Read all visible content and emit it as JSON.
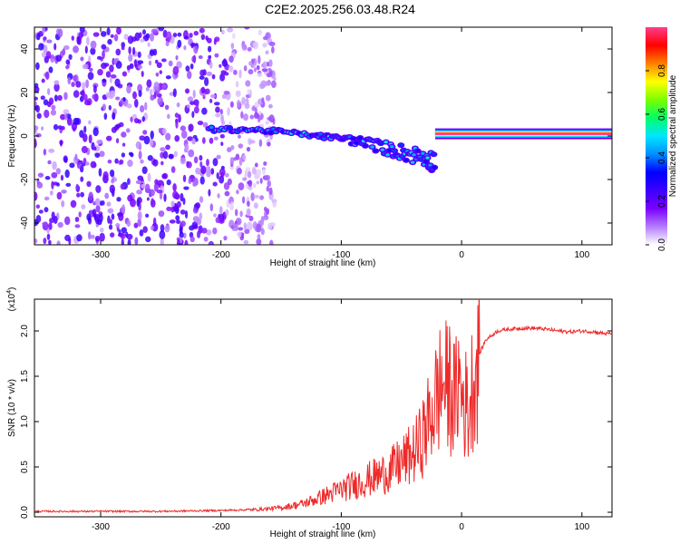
{
  "title": "C2E2.2025.256.03.48.R24",
  "colors": {
    "snr_line": "#ee2a2a",
    "colorbar_stops": [
      "#ffffff",
      "#b57cff",
      "#7a00ff",
      "#3b00ff",
      "#0000ff",
      "#0090ff",
      "#00e6ff",
      "#00ff66",
      "#7cff00",
      "#ffff00",
      "#ff8000",
      "#ff0000",
      "#ff3d8b"
    ]
  },
  "chart_data": [
    {
      "type": "heatmap",
      "title": "",
      "xlabel": "Height of straight line (km)",
      "ylabel": "Frequency (Hz)",
      "xlim": [
        -355,
        125
      ],
      "ylim": [
        -50,
        50
      ],
      "xticks": [
        -300,
        -200,
        -100,
        0,
        100
      ],
      "xtick_labels": [
        "-300",
        "-200",
        "-100",
        "0",
        "100"
      ],
      "yticks": [
        -40,
        -20,
        0,
        20,
        40
      ],
      "ytick_labels": [
        "-40",
        "-20",
        "0",
        "20",
        "40"
      ],
      "colorbar": {
        "label": "Normalized spectral amplitude",
        "range": [
          0,
          1
        ],
        "ticks": [
          0.0,
          0.2,
          0.4,
          0.6,
          0.8
        ],
        "tick_labels": [
          "0.0",
          "0.2",
          "0.4",
          "0.6",
          "0.8"
        ]
      },
      "features": [
        {
          "name": "noise region",
          "x_range": [
            -355,
            -175
          ],
          "freq_range": [
            -50,
            50
          ],
          "amplitude": 0.2
        },
        {
          "name": "doppler trace",
          "points": [
            [
              -210,
              3
            ],
            [
              -180,
              3
            ],
            [
              -150,
              2
            ],
            [
              -120,
              0
            ],
            [
              -100,
              -1
            ],
            [
              -80,
              -3
            ],
            [
              -60,
              -6
            ],
            [
              -45,
              -8
            ],
            [
              -30,
              -10
            ],
            [
              -22,
              -12
            ]
          ],
          "amplitude": 0.4
        },
        {
          "name": "carrier line",
          "x_range": [
            -22,
            125
          ],
          "freq": 1,
          "amplitude": 1.0
        }
      ]
    },
    {
      "type": "line",
      "title": "",
      "xlabel": "Height of straight line (km)",
      "ylabel": "SNR (10 * v/v)",
      "y_multiplier": "(x10^4)",
      "y_multiplier_base": "(x10",
      "y_multiplier_exp": "4",
      "xlim": [
        -355,
        125
      ],
      "ylim": [
        -0.05,
        2.35
      ],
      "xticks": [
        -300,
        -200,
        -100,
        0,
        100
      ],
      "xtick_labels": [
        "-300",
        "-200",
        "-100",
        "0",
        "100"
      ],
      "yticks": [
        0.0,
        0.5,
        1.0,
        1.5,
        2.0
      ],
      "ytick_labels": [
        "0.0",
        "0.5",
        "1.0",
        "1.5",
        "2.0"
      ],
      "series": [
        {
          "x": [
            -355,
            -300,
            -250,
            -200,
            -170,
            -150,
            -130,
            -120,
            -110,
            -100,
            -90,
            -80,
            -70,
            -60,
            -50,
            -40,
            -35,
            -30,
            -25,
            -20,
            -15,
            -12,
            -10,
            -8,
            -5,
            -3,
            0,
            3,
            6,
            8,
            10,
            15,
            20,
            30,
            40,
            50,
            60,
            70,
            80,
            90,
            100,
            110,
            120,
            125
          ],
          "y": [
            0.01,
            0.01,
            0.01,
            0.02,
            0.03,
            0.05,
            0.1,
            0.15,
            0.2,
            0.25,
            0.3,
            0.35,
            0.4,
            0.45,
            0.55,
            0.65,
            0.75,
            0.9,
            1.1,
            1.3,
            1.45,
            1.35,
            1.4,
            1.3,
            1.2,
            1.5,
            1.3,
            1.2,
            1.1,
            1.3,
            1.5,
            1.75,
            1.9,
            2.0,
            2.02,
            2.03,
            2.03,
            2.02,
            2.0,
            1.99,
            2.0,
            1.99,
            1.97,
            1.97
          ]
        }
      ]
    }
  ]
}
